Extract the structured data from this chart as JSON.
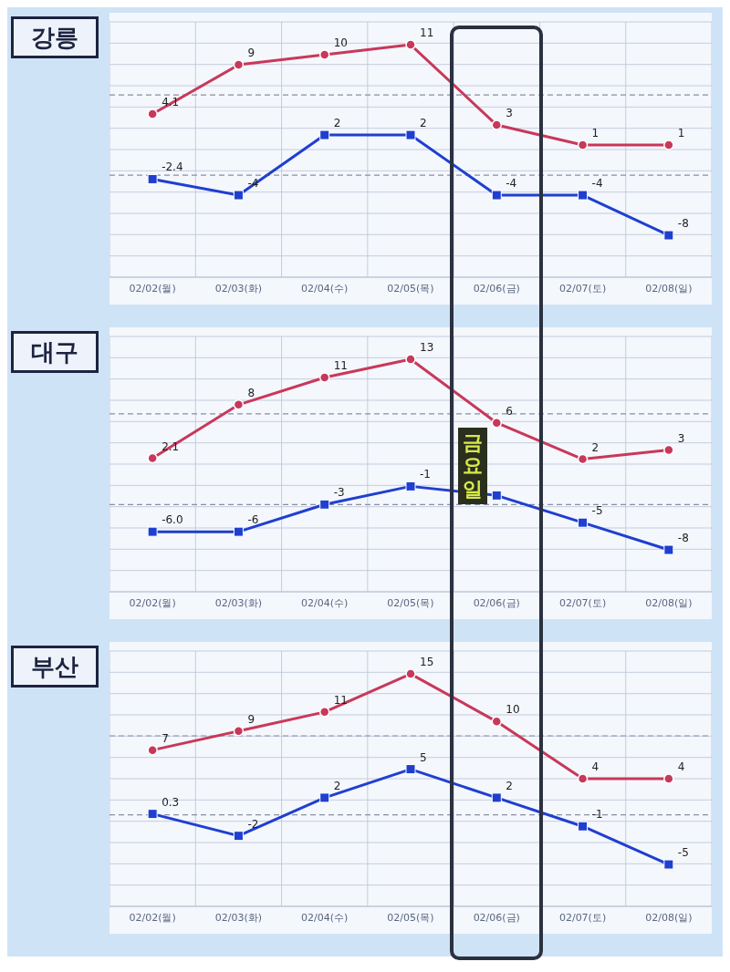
{
  "chart_data": [
    {
      "type": "line",
      "title": "강릉",
      "categories": [
        "02/02(월)",
        "02/03(화)",
        "02/04(수)",
        "02/05(목)",
        "02/06(금)",
        "02/07(토)",
        "02/08(일)"
      ],
      "grid": true,
      "legend": false,
      "tick_labels": "x",
      "series": [
        {
          "color": "#c8385a",
          "marker": "circle",
          "values": [
            4.1,
            9,
            10,
            11,
            3,
            1,
            1
          ],
          "value_labels": [
            "4.1",
            "9",
            "10",
            "11",
            "3",
            "1",
            "1"
          ]
        },
        {
          "color": "#1f3fd0",
          "marker": "square",
          "values": [
            -2.4,
            -4,
            2,
            2,
            -4,
            -4,
            -8
          ],
          "value_labels": [
            "-2.4",
            "-4",
            "2",
            "2",
            "-4",
            "-4",
            "-8"
          ]
        }
      ],
      "ref_lines": [
        {
          "axis": "y",
          "value": 6,
          "line_style": "dashed",
          "color": "#8a8fa0"
        },
        {
          "axis": "y",
          "value": -2,
          "line_style": "dashed",
          "color": "#8a8fa0"
        }
      ]
    },
    {
      "type": "line",
      "title": "대구",
      "categories": [
        "02/02(월)",
        "02/03(화)",
        "02/04(수)",
        "02/05(목)",
        "02/06(금)",
        "02/07(토)",
        "02/08(일)"
      ],
      "grid": true,
      "legend": false,
      "tick_labels": "x",
      "annotations": [
        "금요일"
      ],
      "series": [
        {
          "color": "#c8385a",
          "marker": "circle",
          "values": [
            2.1,
            8,
            11,
            13,
            6,
            2,
            3
          ],
          "value_labels": [
            "2.1",
            "8",
            "11",
            "13",
            "6",
            "2",
            "3"
          ]
        },
        {
          "color": "#1f3fd0",
          "marker": "square",
          "values": [
            -6,
            -6,
            -3,
            -1,
            -2,
            -5,
            -8
          ],
          "value_labels": [
            "-6.0",
            "-6",
            "-3",
            "-1",
            null,
            "-5",
            "-8"
          ]
        }
      ],
      "ref_lines": [
        {
          "axis": "y",
          "value": 7,
          "line_style": "dashed",
          "color": "#8a8fa0"
        },
        {
          "axis": "y",
          "value": -3,
          "line_style": "dashed",
          "color": "#8a8fa0"
        }
      ]
    },
    {
      "type": "line",
      "title": "부산",
      "categories": [
        "02/02(월)",
        "02/03(화)",
        "02/04(수)",
        "02/05(목)",
        "02/06(금)",
        "02/07(토)",
        "02/08(일)"
      ],
      "grid": true,
      "legend": false,
      "tick_labels": "x",
      "series": [
        {
          "color": "#c8385a",
          "marker": "circle",
          "values": [
            7,
            9,
            11,
            15,
            10,
            4,
            4
          ],
          "value_labels": [
            "7",
            "9",
            "11",
            "15",
            "10",
            "4",
            "4"
          ]
        },
        {
          "color": "#1f3fd0",
          "marker": "square",
          "values": [
            0.3,
            -2,
            2,
            5,
            2,
            -1,
            -5
          ],
          "value_labels": [
            "0.3",
            "-2",
            "2",
            "5",
            "2",
            "-1",
            "-5"
          ]
        }
      ],
      "ref_lines": [
        {
          "axis": "y",
          "value": 8.5,
          "line_style": "dashed",
          "color": "#8a8fa0"
        },
        {
          "axis": "y",
          "value": 0.2,
          "line_style": "dashed",
          "color": "#8a8fa0"
        }
      ]
    }
  ]
}
